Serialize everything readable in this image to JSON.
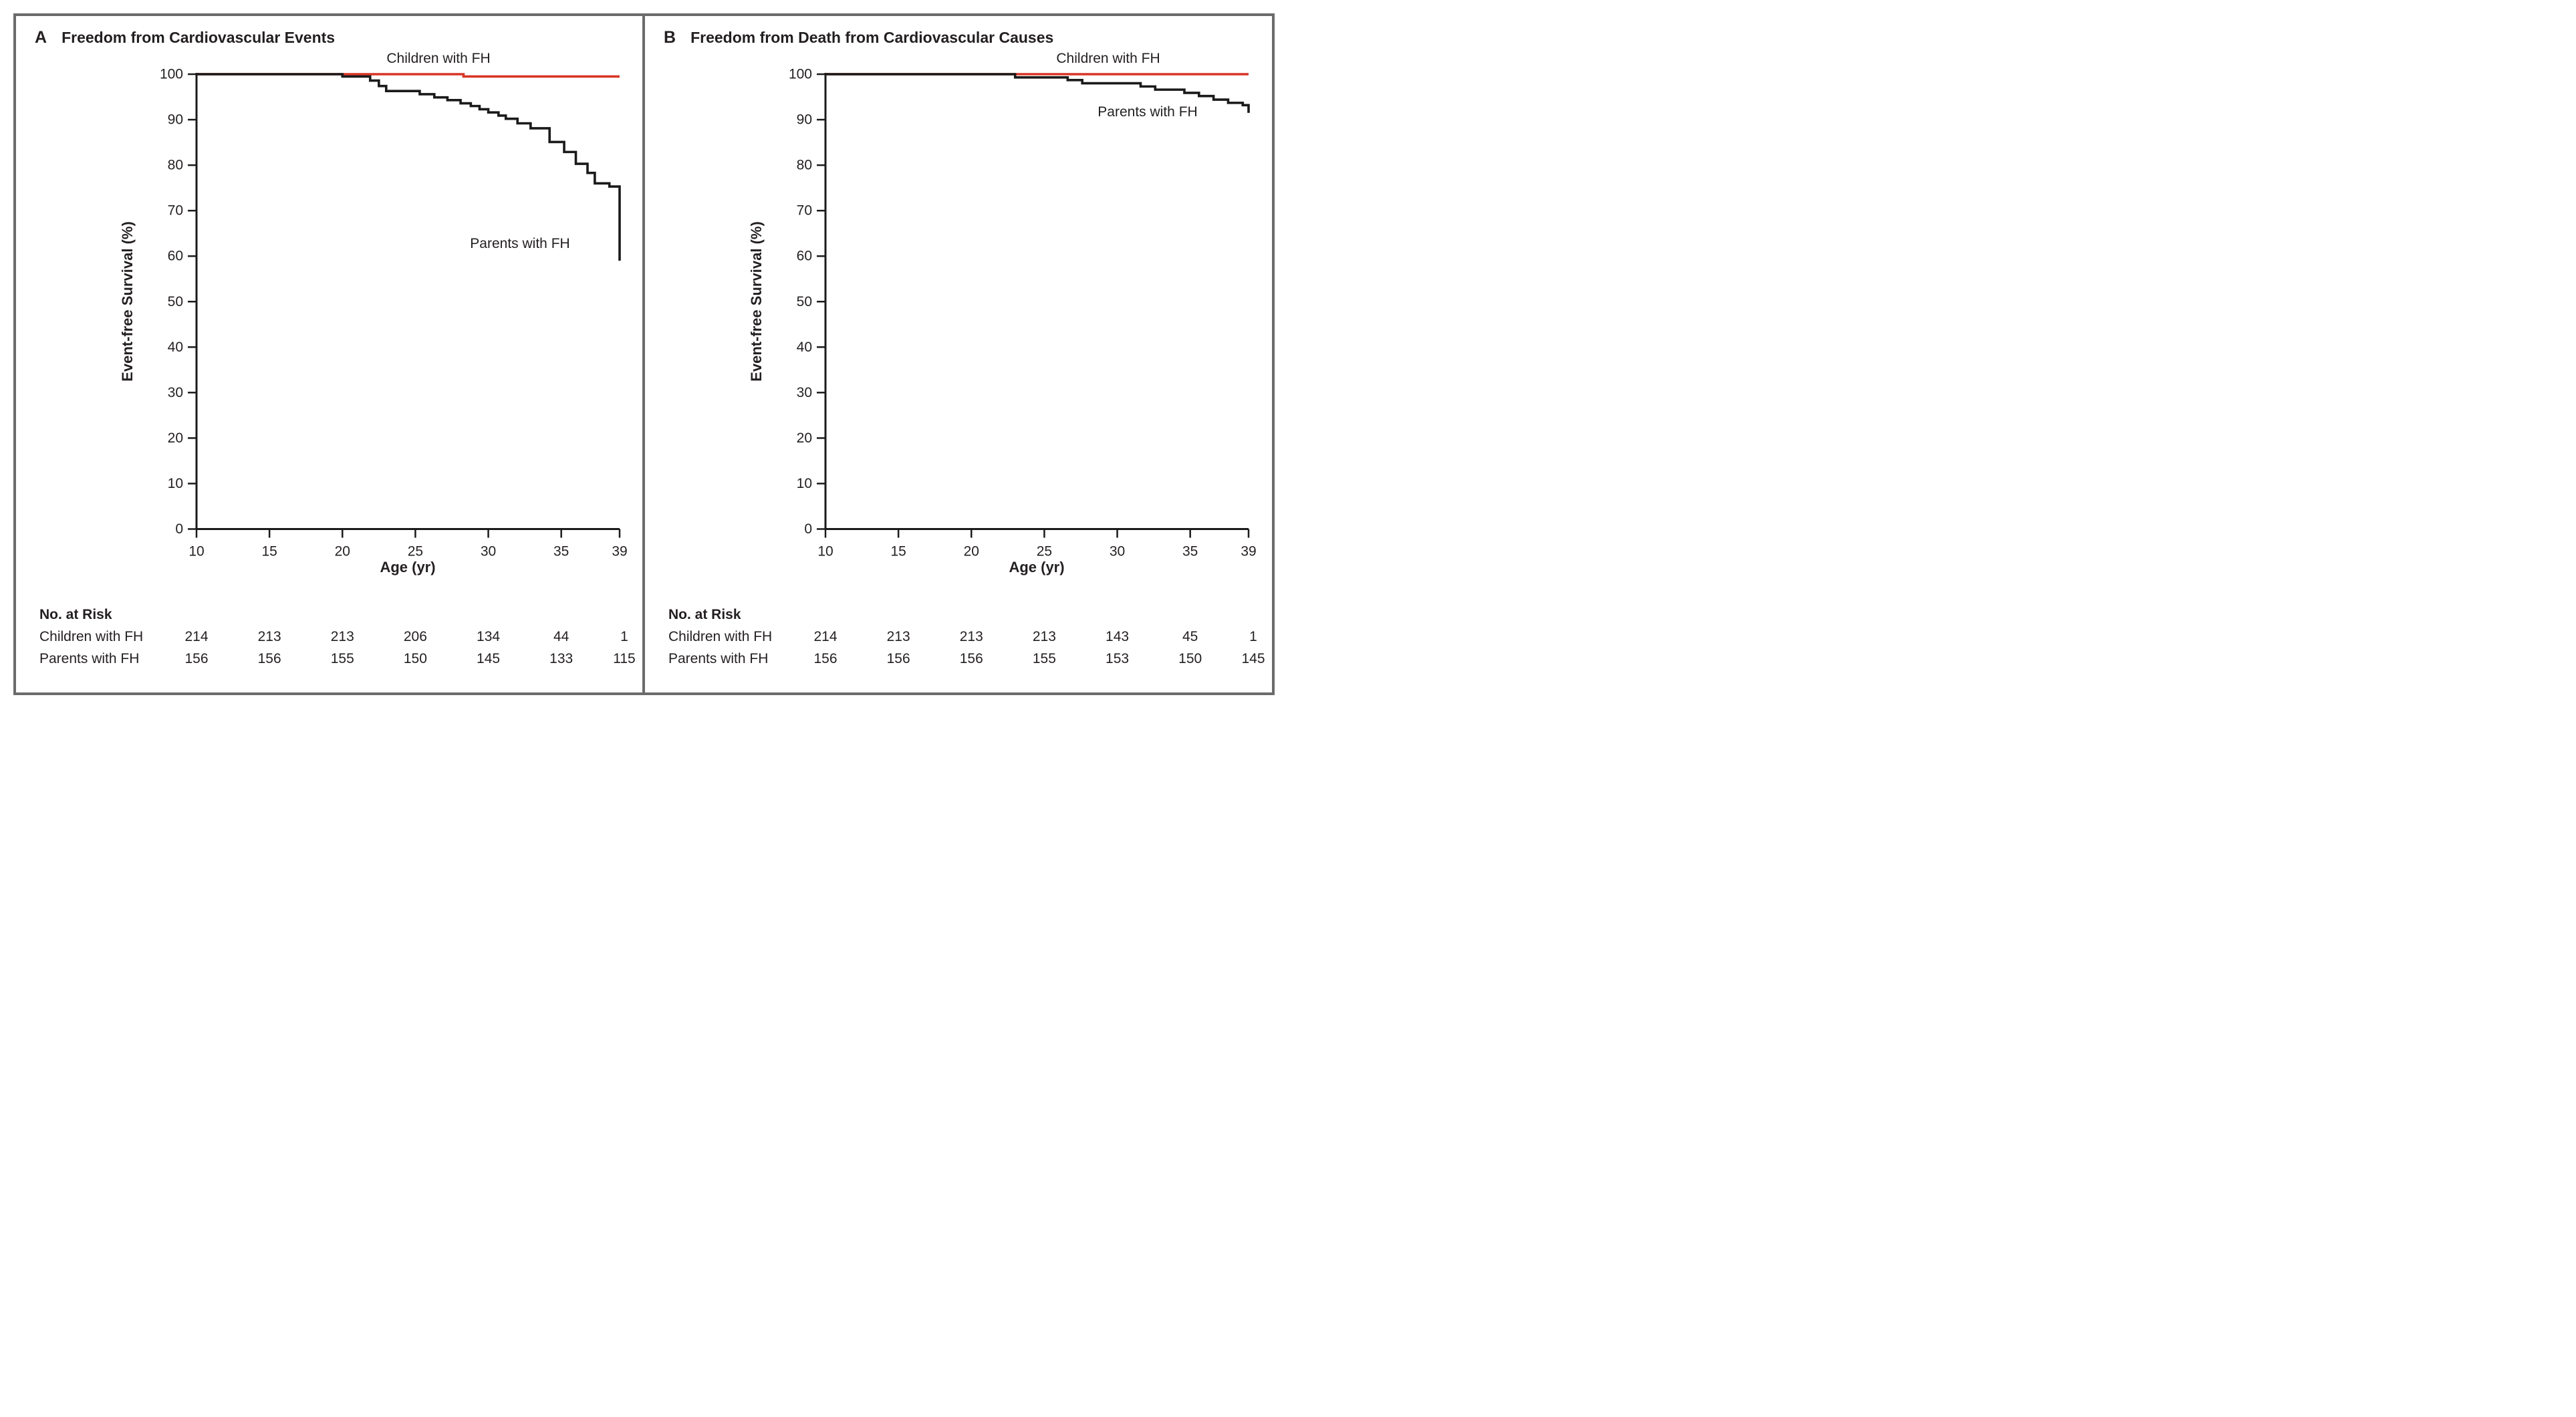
{
  "figure": {
    "border_color": "#6b6b6b",
    "background": "#ffffff",
    "text_color": "#231f20"
  },
  "panels": [
    {
      "letter": "A",
      "title": "Freedom from Cardiovascular Events",
      "ylabel": "Event-free Survival (%)",
      "xlabel": "Age (yr)",
      "risk_header": "No. at Risk",
      "curve_labels": {
        "children": "Children with FH",
        "parents": "Parents with FH"
      }
    },
    {
      "letter": "B",
      "title": "Freedom from Death from Cardiovascular Causes",
      "ylabel": "Event-free Survival (%)",
      "xlabel": "Age (yr)",
      "risk_header": "No. at Risk",
      "curve_labels": {
        "children": "Children with FH",
        "parents": "Parents with FH"
      }
    }
  ],
  "chart_data": [
    {
      "panel": "A",
      "type": "line",
      "subtype": "kaplan-meier-step",
      "title": "Freedom from Cardiovascular Events",
      "xlabel": "Age (yr)",
      "ylabel": "Event-free Survival (%)",
      "xlim": [
        10,
        39
      ],
      "ylim": [
        0,
        100
      ],
      "xticks": [
        10,
        15,
        20,
        25,
        30,
        35,
        39
      ],
      "yticks": [
        0,
        10,
        20,
        30,
        40,
        50,
        60,
        70,
        80,
        90,
        100
      ],
      "grid": false,
      "legend_position": "inline-labels",
      "series": [
        {
          "name": "Children with FH",
          "color": "#d93526",
          "start": [
            10,
            100
          ],
          "steps": [
            [
              28.3,
              99.5
            ]
          ],
          "end_age": 39,
          "final_value": 99.5
        },
        {
          "name": "Parents with FH",
          "color": "#1a1a1a",
          "start": [
            10,
            100
          ],
          "steps": [
            [
              20,
              99.5
            ],
            [
              21.9,
              98.6
            ],
            [
              22.5,
              97.4
            ],
            [
              23,
              96.3
            ],
            [
              25.3,
              95.6
            ],
            [
              26.3,
              94.9
            ],
            [
              27.2,
              94.3
            ],
            [
              28.1,
              93.6
            ],
            [
              28.8,
              93
            ],
            [
              29.4,
              92.3
            ],
            [
              30,
              91.6
            ],
            [
              30.7,
              90.9
            ],
            [
              31.2,
              90.2
            ],
            [
              32,
              89.2
            ],
            [
              32.9,
              88.1
            ],
            [
              34.2,
              85.1
            ],
            [
              35.2,
              82.9
            ],
            [
              36,
              80.3
            ],
            [
              36.8,
              78.3
            ],
            [
              37.3,
              76
            ],
            [
              38.3,
              75.3
            ],
            [
              39,
              59
            ]
          ],
          "end_age": 39,
          "final_value": 59
        }
      ],
      "no_at_risk": {
        "header": "No. at Risk",
        "ages": [
          10,
          15,
          20,
          25,
          30,
          35,
          39
        ],
        "rows": [
          {
            "label": "Children with FH",
            "values": [
              214,
              213,
              213,
              206,
              134,
              44,
              1
            ]
          },
          {
            "label": "Parents with FH",
            "values": [
              156,
              156,
              155,
              150,
              145,
              133,
              115
            ]
          }
        ]
      }
    },
    {
      "panel": "B",
      "type": "line",
      "subtype": "kaplan-meier-step",
      "title": "Freedom from Death from Cardiovascular Causes",
      "xlabel": "Age (yr)",
      "ylabel": "Event-free Survival (%)",
      "xlim": [
        10,
        39
      ],
      "ylim": [
        0,
        100
      ],
      "xticks": [
        10,
        15,
        20,
        25,
        30,
        35,
        39
      ],
      "yticks": [
        0,
        10,
        20,
        30,
        40,
        50,
        60,
        70,
        80,
        90,
        100
      ],
      "grid": false,
      "legend_position": "inline-labels",
      "series": [
        {
          "name": "Children with FH",
          "color": "#d93526",
          "start": [
            10,
            100
          ],
          "steps": [],
          "end_age": 39,
          "final_value": 100
        },
        {
          "name": "Parents with FH",
          "color": "#1a1a1a",
          "start": [
            10,
            100
          ],
          "steps": [
            [
              23,
              99.3
            ],
            [
              26.6,
              98.7
            ],
            [
              27.6,
              98
            ],
            [
              31.6,
              97.3
            ],
            [
              32.6,
              96.6
            ],
            [
              34.6,
              95.9
            ],
            [
              35.6,
              95.2
            ],
            [
              36.6,
              94.4
            ],
            [
              37.6,
              93.7
            ],
            [
              38.6,
              93.2
            ],
            [
              39,
              91.5
            ]
          ],
          "end_age": 39,
          "final_value": 91.5
        }
      ],
      "no_at_risk": {
        "header": "No. at Risk",
        "ages": [
          10,
          15,
          20,
          25,
          30,
          35,
          39
        ],
        "rows": [
          {
            "label": "Children with FH",
            "values": [
              214,
              213,
              213,
              213,
              143,
              45,
              1
            ]
          },
          {
            "label": "Parents with FH",
            "values": [
              156,
              156,
              156,
              155,
              153,
              150,
              145
            ]
          }
        ]
      }
    }
  ]
}
